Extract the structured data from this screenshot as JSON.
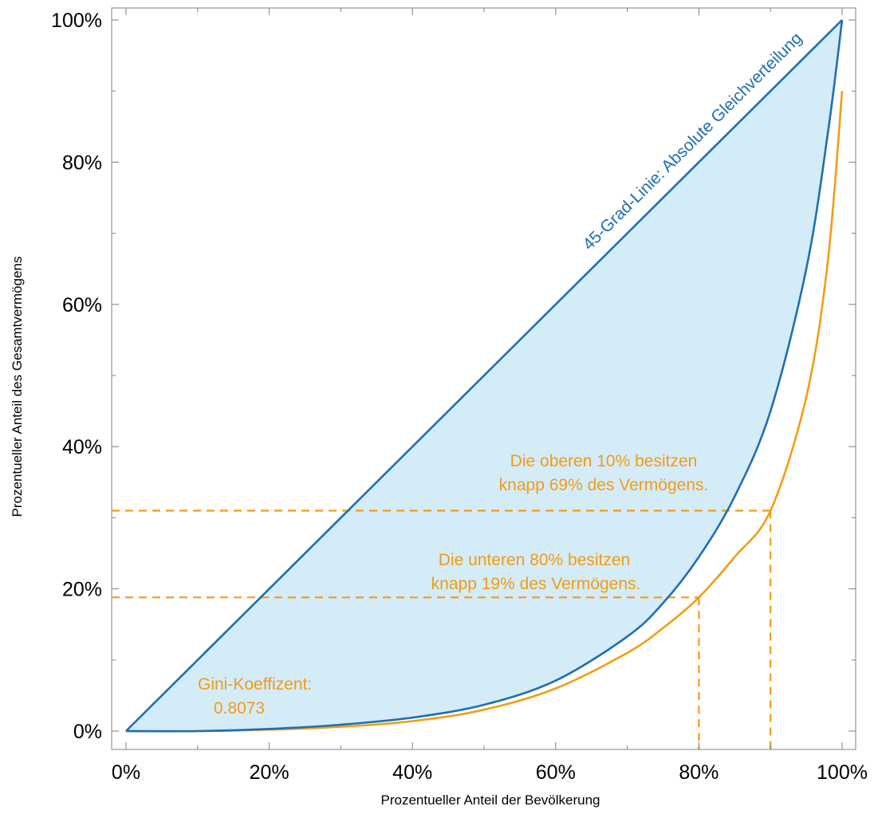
{
  "chart_data": {
    "type": "line",
    "xlabel": "Prozentueller Anteil der Bevölkerung",
    "ylabel": "Prozentueller Anteil des Gesamtvermögens",
    "xlim": [
      0,
      100
    ],
    "ylim": [
      0,
      100
    ],
    "x_ticks": [
      "0%",
      "20%",
      "40%",
      "60%",
      "80%",
      "100%"
    ],
    "y_ticks": [
      "0%",
      "20%",
      "40%",
      "60%",
      "80%",
      "100%"
    ],
    "grid": false,
    "series": [
      {
        "name": "45-Grad-Linie: Absolute Gleichverteilung",
        "color": "#1f6fb2",
        "x": [
          0,
          100
        ],
        "y": [
          0,
          100
        ]
      },
      {
        "color": "#1f6fb2",
        "x": [
          0,
          10,
          20,
          30,
          40,
          50,
          60,
          70,
          75,
          80,
          85,
          90,
          95,
          98,
          100
        ],
        "y": [
          0,
          0,
          0.3,
          0.9,
          1.9,
          3.7,
          7.1,
          13.3,
          18.0,
          24.5,
          33.0,
          45.0,
          65.0,
          84.0,
          100
        ]
      },
      {
        "color": "#f39c12",
        "x": [
          0,
          10,
          20,
          30,
          40,
          50,
          60,
          70,
          75,
          80,
          85,
          90,
          95,
          98,
          100
        ],
        "y": [
          0,
          0,
          0.2,
          0.6,
          1.4,
          3.0,
          6.0,
          11.0,
          14.5,
          18.8,
          24.5,
          31.0,
          47.0,
          66.0,
          90.0
        ]
      }
    ],
    "fill_color": "#d4ebf8",
    "reference_lines": [
      {
        "x": 80,
        "y": 18.8,
        "color": "#f39c12",
        "style": "dashed"
      },
      {
        "x": 90,
        "y": 31.0,
        "color": "#f39c12",
        "style": "dashed"
      }
    ],
    "annotations": [
      {
        "lines": [
          "Die oberen 10% besitzen",
          "knapp 69% des Vermögens."
        ],
        "color": "#f39c12"
      },
      {
        "lines": [
          "Die unteren 80% besitzen",
          "knapp 19% des Vermögens."
        ],
        "color": "#f39c12"
      },
      {
        "lines": [
          "Gini-Koeffizent:",
          "0.8073"
        ],
        "color": "#f39c12"
      }
    ]
  }
}
